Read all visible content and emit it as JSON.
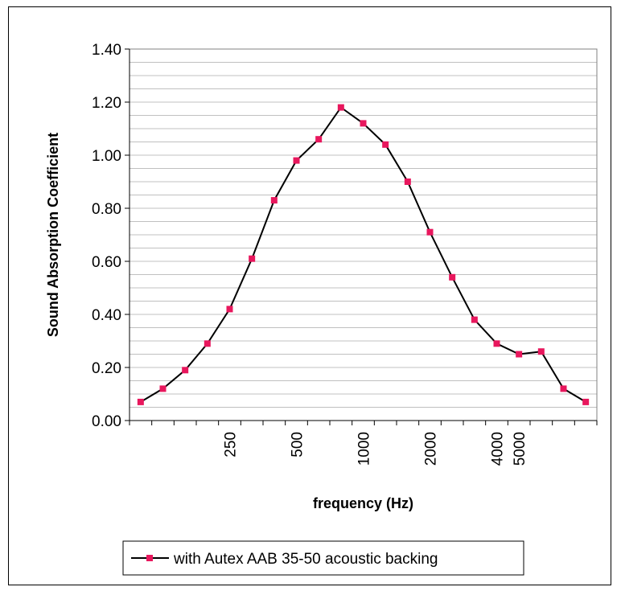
{
  "chart_data": {
    "type": "line",
    "title": "",
    "xlabel": "frequency (Hz)",
    "ylabel": "Sound Absorption Coefficient",
    "ylim": [
      0,
      1.4
    ],
    "y_ticks": [
      "0.00",
      "0.20",
      "0.40",
      "0.60",
      "0.80",
      "1.00",
      "1.20",
      "1.40"
    ],
    "y_tick_values": [
      0,
      0.2,
      0.4,
      0.6,
      0.8,
      1.0,
      1.2,
      1.4
    ],
    "x_tick_labels": [
      {
        "text": "250",
        "index": 4
      },
      {
        "text": "500",
        "index": 7
      },
      {
        "text": "1000",
        "index": 10
      },
      {
        "text": "2000",
        "index": 13
      },
      {
        "text": "4000",
        "index": 16
      },
      {
        "text": "5000",
        "index": 17
      }
    ],
    "grid": true,
    "legend_position": "bottom",
    "series": [
      {
        "name": "with Autex AAB 35-50 acoustic backing",
        "color": "#000000",
        "marker_color": "#e8175d",
        "values": [
          0.07,
          0.12,
          0.19,
          0.29,
          0.42,
          0.61,
          0.83,
          0.98,
          1.06,
          1.18,
          1.12,
          1.04,
          0.9,
          0.71,
          0.54,
          0.38,
          0.29,
          0.25,
          0.26,
          0.12,
          0.07
        ]
      }
    ]
  }
}
